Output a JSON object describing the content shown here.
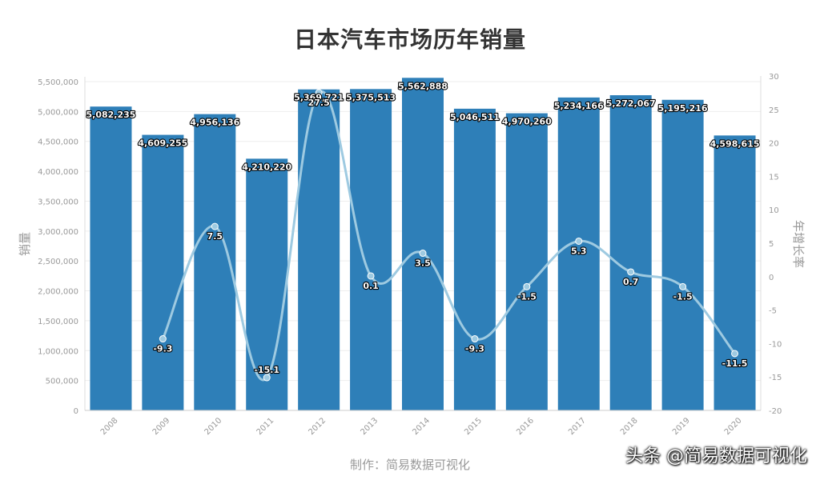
{
  "chart_data": {
    "type": "bar",
    "title": "日本汽车市场历年销量",
    "categories": [
      "2008",
      "2009",
      "2010",
      "2011",
      "2012",
      "2013",
      "2014",
      "2015",
      "2016",
      "2017",
      "2018",
      "2019",
      "2020"
    ],
    "series": [
      {
        "name": "销量",
        "type": "bar",
        "axis": "left",
        "values": [
          5082235,
          4609255,
          4956136,
          4210220,
          5369721,
          5375513,
          5562888,
          5046511,
          4970260,
          5234166,
          5272067,
          5195216,
          4598615
        ],
        "labels": [
          "5,082,235",
          "4,609,255",
          "4,956,136",
          "4,210,220",
          "5,369,721",
          "5,375,513",
          "5,562,888",
          "5,046,511",
          "4,970,260",
          "5,234,166",
          "5,272,067",
          "5,195,216",
          "4,598,615"
        ]
      },
      {
        "name": "年增长率",
        "type": "line",
        "axis": "right",
        "values": [
          null,
          -9.3,
          7.5,
          -15.1,
          27.5,
          0.1,
          3.5,
          -9.3,
          -1.5,
          5.3,
          0.7,
          -1.5,
          -11.5
        ],
        "labels": [
          "",
          "-9.3",
          "7.5",
          "-15.1",
          "27.5",
          "0.1",
          "3.5",
          "-9.3",
          "-1.5",
          "5.3",
          "0.7",
          "-1.5",
          "-11.5"
        ]
      }
    ],
    "ylabel": "销量",
    "ylabel_right": "年增长率",
    "ylim": [
      0,
      5500000
    ],
    "y_ticks": [
      "0",
      "500,000",
      "1,000,000",
      "1,500,000",
      "2,000,000",
      "2,500,000",
      "3,000,000",
      "3,500,000",
      "4,000,000",
      "4,500,000",
      "5,000,000",
      "5,500,000"
    ],
    "y2lim": [
      -20,
      30
    ],
    "y2_ticks": [
      "-20",
      "-15",
      "-10",
      "-5",
      "0",
      "5",
      "10",
      "15",
      "20",
      "25",
      "30"
    ],
    "grid": true,
    "legend": "none",
    "colors": {
      "bar": "#2e7fb8",
      "line": "#9ecae1",
      "line_marker": "#9ecae1"
    }
  },
  "credit": "制作：简易数据可视化",
  "watermark": "头条 @简易数据可视化"
}
